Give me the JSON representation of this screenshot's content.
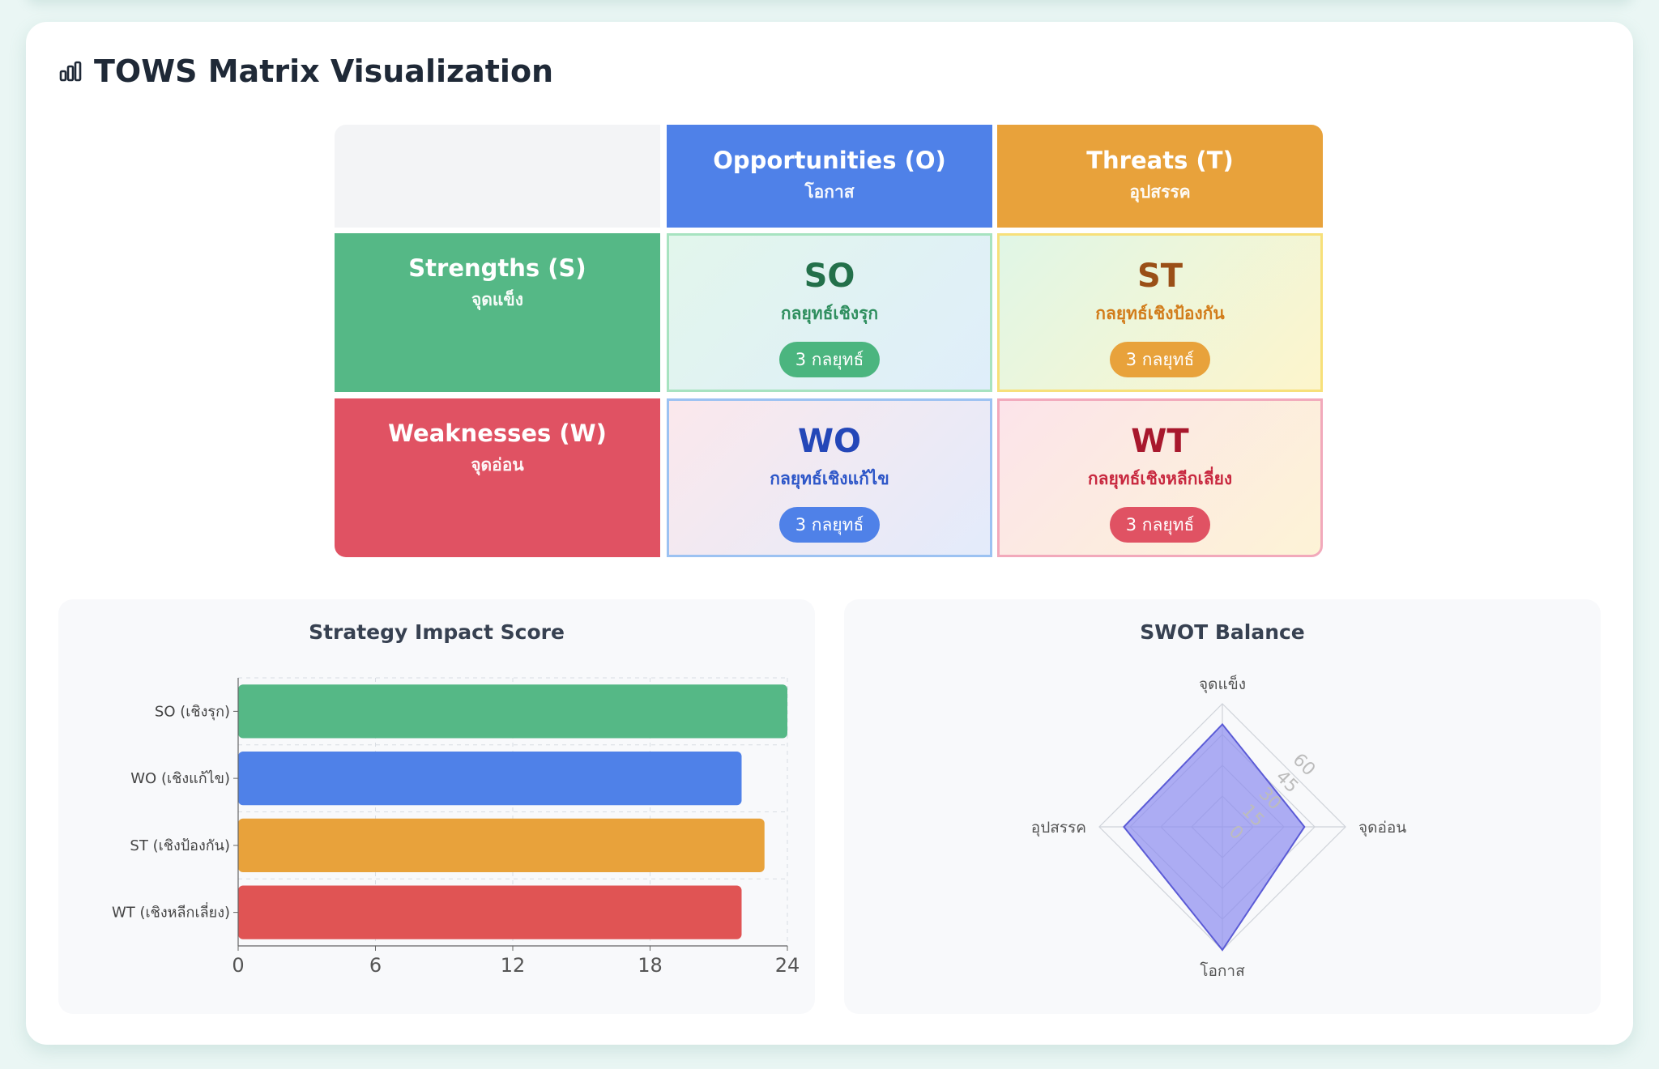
{
  "page": {
    "title": "TOWS Matrix Visualization",
    "title_icon": "bar-chart-icon"
  },
  "matrix": {
    "columns": {
      "o": {
        "label": "Opportunities (O)",
        "sub": "โอกาส",
        "color": "#4f81e8"
      },
      "t": {
        "label": "Threats (T)",
        "sub": "อุปสรรค",
        "color": "#e8a23b"
      }
    },
    "rows": {
      "s": {
        "label": "Strengths (S)",
        "sub": "จุดแข็ง",
        "color": "#55b886"
      },
      "w": {
        "label": "Weaknesses (W)",
        "sub": "จุดอ่อน",
        "color": "#e05263"
      }
    },
    "quadrants": {
      "so": {
        "code": "SO",
        "name": "กลยุทธ์เชิงรุก",
        "badge": "3 กลยุทธ์"
      },
      "st": {
        "code": "ST",
        "name": "กลยุทธ์เชิงป้องกัน",
        "badge": "3 กลยุทธ์"
      },
      "wo": {
        "code": "WO",
        "name": "กลยุทธ์เชิงแก้ไข",
        "badge": "3 กลยุทธ์"
      },
      "wt": {
        "code": "WT",
        "name": "กลยุทธ์เชิงหลีกเลี่ยง",
        "badge": "3 กลยุทธ์"
      }
    }
  },
  "chart_data": [
    {
      "type": "bar",
      "orientation": "horizontal",
      "title": "Strategy Impact Score",
      "categories": [
        "SO (เชิงรุก)",
        "WO (เชิงแก้ไข)",
        "ST (เชิงป้องกัน)",
        "WT (เชิงหลีกเลี่ยง)"
      ],
      "values": [
        24,
        22,
        23,
        22
      ],
      "colors": [
        "#55b886",
        "#4f81e8",
        "#e8a23b",
        "#e05454"
      ],
      "xlim": [
        0,
        24
      ],
      "xticks": [
        "0",
        "6",
        "12",
        "18",
        "24"
      ],
      "grid": true
    },
    {
      "type": "radar",
      "title": "SWOT Balance",
      "axes": [
        "จุดแข็ง",
        "จุดอ่อน",
        "โอกาส",
        "อุปสรรค"
      ],
      "values": [
        50,
        40,
        60,
        48
      ],
      "rlim": [
        0,
        60
      ],
      "rticks": [
        "0",
        "15",
        "30",
        "45",
        "60"
      ],
      "fill_color": "#8c8cf0",
      "line_color": "#5b5bd6"
    }
  ]
}
